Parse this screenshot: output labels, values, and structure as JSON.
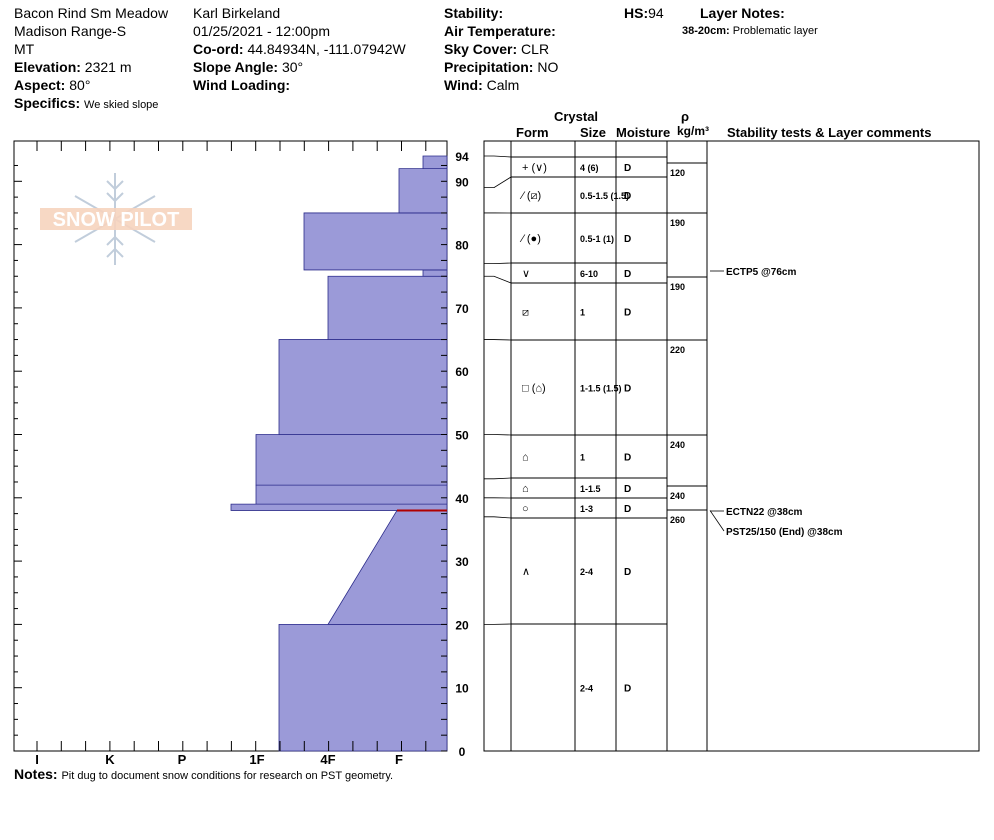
{
  "header": {
    "site": "Bacon Rind Sm Meadow",
    "range": "Madison Range-S",
    "state": "MT",
    "elevation_label": "Elevation:",
    "elevation": "2321 m",
    "aspect_label": "Aspect:",
    "aspect": "80°",
    "specifics_label": "Specifics:",
    "specifics": "We skied slope",
    "observer": "Karl Birkeland",
    "datetime": "01/25/2021 - 12:00pm",
    "coord_label": "Co-ord:",
    "coord": "44.84934N, -111.07942W",
    "slope_label": "Slope Angle:",
    "slope": "30°",
    "wind_loading_label": "Wind Loading:",
    "stability_label": "Stability:",
    "air_temp_label": "Air Temperature:",
    "sky_label": "Sky Cover:",
    "sky": "CLR",
    "precip_label": "Precipitation:",
    "precip": "NO",
    "wind_label": "Wind:",
    "wind": "Calm",
    "hs_label": "HS:",
    "hs": "94",
    "layer_notes_label": "Layer Notes:",
    "layer_note_depth": "38-20cm:",
    "layer_note_text": "Problematic layer"
  },
  "table_headers": {
    "crystal": "Crystal",
    "form": "Form",
    "size": "Size",
    "moisture": "Moisture",
    "rho": "ρ",
    "density_unit": "kg/m³",
    "stability": "Stability tests & Layer comments"
  },
  "logo_text": "SNOW PILOT",
  "colors": {
    "profile_fill": "#9b9ad8",
    "profile_stroke": "#2b2b8a",
    "weak_layer": "#b00000"
  },
  "chart_data": {
    "type": "area",
    "ylabel": "",
    "ylim": [
      0,
      94
    ],
    "y_ticks": [
      0,
      10,
      20,
      30,
      40,
      50,
      60,
      70,
      80,
      90,
      94
    ],
    "x_categories": [
      "I",
      "K",
      "P",
      "1F",
      "4F",
      "F"
    ],
    "hardness_profile": [
      {
        "bottom": 0,
        "top": 20,
        "hardness_left": "1F-",
        "hardness_right": "1F-"
      },
      {
        "bottom": 20,
        "top": 38,
        "hardness_left": "4F",
        "hardness_right": "F+",
        "note": "gradient"
      },
      {
        "bottom": 38,
        "top": 39,
        "hardness_left": "P-",
        "hardness_right": "P-"
      },
      {
        "bottom": 39,
        "top": 42,
        "hardness_left": "1F+",
        "hardness_right": "1F+"
      },
      {
        "bottom": 42,
        "top": 50,
        "hardness_left": "1F+",
        "hardness_right": "1F+"
      },
      {
        "bottom": 50,
        "top": 65,
        "hardness_left": "1F-",
        "hardness_right": "1F-"
      },
      {
        "bottom": 65,
        "top": 75,
        "hardness_left": "4F",
        "hardness_right": "4F"
      },
      {
        "bottom": 75,
        "top": 76,
        "hardness_left": "F-",
        "hardness_right": "F-"
      },
      {
        "bottom": 76,
        "top": 85,
        "hardness_left": "4F+",
        "hardness_right": "4F+"
      },
      {
        "bottom": 85,
        "top": 92,
        "hardness_left": "F",
        "hardness_right": "F"
      },
      {
        "bottom": 92,
        "top": 94,
        "hardness_left": "F-",
        "hardness_right": "F-"
      }
    ],
    "layers": [
      {
        "top": 94,
        "bottom": 89,
        "form": "+ (∨)",
        "size": "4 (6)",
        "moisture": "D"
      },
      {
        "top": 89,
        "bottom": 85,
        "form": "⁄ (⧄)",
        "size": "0.5-1.5 (1.5)",
        "moisture": "D"
      },
      {
        "top": 85,
        "bottom": 77,
        "form": "⁄ (●)",
        "size": "0.5-1 (1)",
        "moisture": "D"
      },
      {
        "top": 77,
        "bottom": 75,
        "form": "∨",
        "size": "6-10",
        "moisture": "D"
      },
      {
        "top": 75,
        "bottom": 65,
        "form": "⧄",
        "size": "1",
        "moisture": "D"
      },
      {
        "top": 65,
        "bottom": 50,
        "form": "□ (⌂)",
        "size": "1-1.5 (1.5)",
        "moisture": "D"
      },
      {
        "top": 50,
        "bottom": 43,
        "form": "⌂",
        "size": "1",
        "moisture": "D"
      },
      {
        "top": 43,
        "bottom": 40,
        "form": "⌂",
        "size": "1-1.5",
        "moisture": "D"
      },
      {
        "top": 40,
        "bottom": 37,
        "form": "○",
        "size": "1-3",
        "moisture": "D"
      },
      {
        "top": 37,
        "bottom": 20,
        "form": "∧",
        "size": "2-4",
        "moisture": "D"
      },
      {
        "top": 20,
        "bottom": 0,
        "form": "",
        "size": "2-4",
        "moisture": "D"
      }
    ],
    "densities": [
      {
        "depth": 92,
        "value": "120"
      },
      {
        "depth": 83,
        "value": "190"
      },
      {
        "depth": 74,
        "value": "190"
      },
      {
        "depth": 63,
        "value": "220"
      },
      {
        "depth": 48,
        "value": "240"
      },
      {
        "depth": 40,
        "value": "240"
      },
      {
        "depth": 37,
        "value": "260"
      }
    ],
    "stability_tests": [
      {
        "depth": 76,
        "label": "ECTP5 @76cm"
      },
      {
        "depth": 38,
        "label": "ECTN22 @38cm"
      },
      {
        "depth": 38,
        "label": "PST25/150 (End) @38cm"
      }
    ]
  },
  "notes_label": "Notes:",
  "notes_text": "Pit dug to document snow conditions for research on PST geometry."
}
